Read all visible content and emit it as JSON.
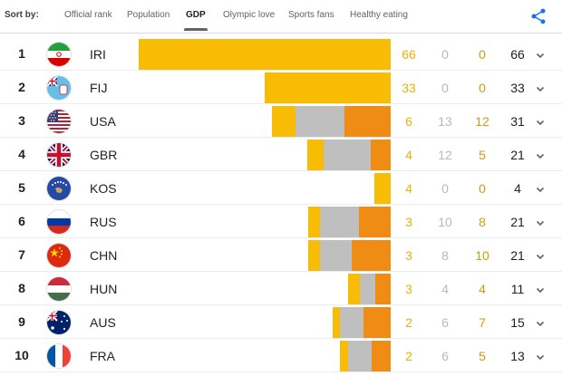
{
  "header": {
    "sort_label": "Sort by:",
    "tabs": [
      {
        "label": "Official rank",
        "active": false
      },
      {
        "label": "Population",
        "active": false
      },
      {
        "label": "GDP",
        "active": true
      },
      {
        "label": "Olympic love",
        "active": false
      },
      {
        "label": "Sports fans",
        "active": false
      },
      {
        "label": "Healthy eating",
        "active": false
      }
    ],
    "share_icon": "share-icon"
  },
  "colors": {
    "gold": "#f8bc05",
    "silver": "#bfbfbf",
    "bronze": "#ef8c14",
    "share": "#1a73e8"
  },
  "rows": [
    {
      "rank": "1",
      "code": "IRI",
      "flag": "iran-flag-icon",
      "gold": "66",
      "silver": "0",
      "bronze": "0",
      "total": "66",
      "bar_share": {
        "gold": 0.65,
        "silver": 0,
        "bronze": 0
      }
    },
    {
      "rank": "2",
      "code": "FIJ",
      "flag": "fiji-flag-icon",
      "gold": "33",
      "silver": "0",
      "bronze": "0",
      "total": "33",
      "bar_share": {
        "gold": 0.325,
        "silver": 0,
        "bronze": 0
      }
    },
    {
      "rank": "3",
      "code": "USA",
      "flag": "usa-flag-icon",
      "gold": "6",
      "silver": "13",
      "bronze": "12",
      "total": "31",
      "bar_share": {
        "gold": 0.06,
        "silver": 0.128,
        "bronze": 0.118
      }
    },
    {
      "rank": "4",
      "code": "GBR",
      "flag": "gbr-flag-icon",
      "gold": "4",
      "silver": "12",
      "bronze": "5",
      "total": "21",
      "bar_share": {
        "gold": 0.041,
        "silver": 0.122,
        "bronze": 0.051
      }
    },
    {
      "rank": "5",
      "code": "KOS",
      "flag": "kosovo-flag-icon",
      "gold": "4",
      "silver": "0",
      "bronze": "0",
      "total": "4",
      "bar_share": {
        "gold": 0.041,
        "silver": 0,
        "bronze": 0
      }
    },
    {
      "rank": "6",
      "code": "RUS",
      "flag": "russia-flag-icon",
      "gold": "3",
      "silver": "10",
      "bronze": "8",
      "total": "21",
      "bar_share": {
        "gold": 0.03,
        "silver": 0.101,
        "bronze": 0.081
      }
    },
    {
      "rank": "7",
      "code": "CHN",
      "flag": "china-flag-icon",
      "gold": "3",
      "silver": "8",
      "bronze": "10",
      "total": "21",
      "bar_share": {
        "gold": 0.03,
        "silver": 0.081,
        "bronze": 0.101
      }
    },
    {
      "rank": "8",
      "code": "HUN",
      "flag": "hungary-flag-icon",
      "gold": "3",
      "silver": "4",
      "bronze": "4",
      "total": "11",
      "bar_share": {
        "gold": 0.03,
        "silver": 0.04,
        "bronze": 0.04
      }
    },
    {
      "rank": "9",
      "code": "AUS",
      "flag": "australia-flag-icon",
      "gold": "2",
      "silver": "6",
      "bronze": "7",
      "total": "15",
      "bar_share": {
        "gold": 0.02,
        "silver": 0.06,
        "bronze": 0.07
      }
    },
    {
      "rank": "10",
      "code": "FRA",
      "flag": "france-flag-icon",
      "gold": "2",
      "silver": "6",
      "bronze": "5",
      "total": "13",
      "bar_share": {
        "gold": 0.02,
        "silver": 0.06,
        "bronze": 0.05
      }
    }
  ]
}
